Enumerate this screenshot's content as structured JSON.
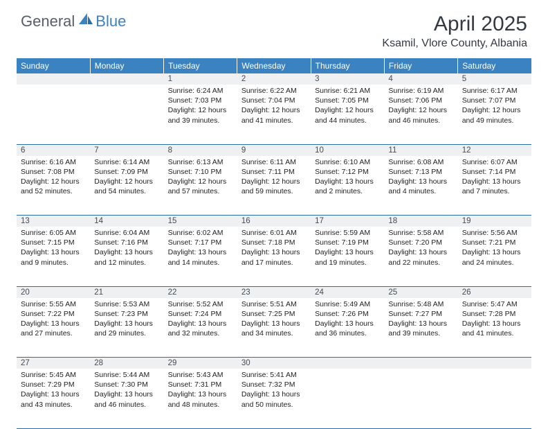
{
  "brand": {
    "general": "General",
    "blue": "Blue"
  },
  "title": "April 2025",
  "location": "Ksamil, Vlore County, Albania",
  "dayHeaders": [
    "Sunday",
    "Monday",
    "Tuesday",
    "Wednesday",
    "Thursday",
    "Friday",
    "Saturday"
  ],
  "colors": {
    "header_bg": "#3b83c0",
    "rule": "#2a6ea8",
    "daynum_bg": "#eef0f2",
    "text_dark": "#333a42"
  },
  "weeks": [
    [
      null,
      null,
      {
        "n": "1",
        "sr": "6:24 AM",
        "ss": "7:03 PM",
        "dl": "12 hours and 39 minutes."
      },
      {
        "n": "2",
        "sr": "6:22 AM",
        "ss": "7:04 PM",
        "dl": "12 hours and 41 minutes."
      },
      {
        "n": "3",
        "sr": "6:21 AM",
        "ss": "7:05 PM",
        "dl": "12 hours and 44 minutes."
      },
      {
        "n": "4",
        "sr": "6:19 AM",
        "ss": "7:06 PM",
        "dl": "12 hours and 46 minutes."
      },
      {
        "n": "5",
        "sr": "6:17 AM",
        "ss": "7:07 PM",
        "dl": "12 hours and 49 minutes."
      }
    ],
    [
      {
        "n": "6",
        "sr": "6:16 AM",
        "ss": "7:08 PM",
        "dl": "12 hours and 52 minutes."
      },
      {
        "n": "7",
        "sr": "6:14 AM",
        "ss": "7:09 PM",
        "dl": "12 hours and 54 minutes."
      },
      {
        "n": "8",
        "sr": "6:13 AM",
        "ss": "7:10 PM",
        "dl": "12 hours and 57 minutes."
      },
      {
        "n": "9",
        "sr": "6:11 AM",
        "ss": "7:11 PM",
        "dl": "12 hours and 59 minutes."
      },
      {
        "n": "10",
        "sr": "6:10 AM",
        "ss": "7:12 PM",
        "dl": "13 hours and 2 minutes."
      },
      {
        "n": "11",
        "sr": "6:08 AM",
        "ss": "7:13 PM",
        "dl": "13 hours and 4 minutes."
      },
      {
        "n": "12",
        "sr": "6:07 AM",
        "ss": "7:14 PM",
        "dl": "13 hours and 7 minutes."
      }
    ],
    [
      {
        "n": "13",
        "sr": "6:05 AM",
        "ss": "7:15 PM",
        "dl": "13 hours and 9 minutes."
      },
      {
        "n": "14",
        "sr": "6:04 AM",
        "ss": "7:16 PM",
        "dl": "13 hours and 12 minutes."
      },
      {
        "n": "15",
        "sr": "6:02 AM",
        "ss": "7:17 PM",
        "dl": "13 hours and 14 minutes."
      },
      {
        "n": "16",
        "sr": "6:01 AM",
        "ss": "7:18 PM",
        "dl": "13 hours and 17 minutes."
      },
      {
        "n": "17",
        "sr": "5:59 AM",
        "ss": "7:19 PM",
        "dl": "13 hours and 19 minutes."
      },
      {
        "n": "18",
        "sr": "5:58 AM",
        "ss": "7:20 PM",
        "dl": "13 hours and 22 minutes."
      },
      {
        "n": "19",
        "sr": "5:56 AM",
        "ss": "7:21 PM",
        "dl": "13 hours and 24 minutes."
      }
    ],
    [
      {
        "n": "20",
        "sr": "5:55 AM",
        "ss": "7:22 PM",
        "dl": "13 hours and 27 minutes."
      },
      {
        "n": "21",
        "sr": "5:53 AM",
        "ss": "7:23 PM",
        "dl": "13 hours and 29 minutes."
      },
      {
        "n": "22",
        "sr": "5:52 AM",
        "ss": "7:24 PM",
        "dl": "13 hours and 32 minutes."
      },
      {
        "n": "23",
        "sr": "5:51 AM",
        "ss": "7:25 PM",
        "dl": "13 hours and 34 minutes."
      },
      {
        "n": "24",
        "sr": "5:49 AM",
        "ss": "7:26 PM",
        "dl": "13 hours and 36 minutes."
      },
      {
        "n": "25",
        "sr": "5:48 AM",
        "ss": "7:27 PM",
        "dl": "13 hours and 39 minutes."
      },
      {
        "n": "26",
        "sr": "5:47 AM",
        "ss": "7:28 PM",
        "dl": "13 hours and 41 minutes."
      }
    ],
    [
      {
        "n": "27",
        "sr": "5:45 AM",
        "ss": "7:29 PM",
        "dl": "13 hours and 43 minutes."
      },
      {
        "n": "28",
        "sr": "5:44 AM",
        "ss": "7:30 PM",
        "dl": "13 hours and 46 minutes."
      },
      {
        "n": "29",
        "sr": "5:43 AM",
        "ss": "7:31 PM",
        "dl": "13 hours and 48 minutes."
      },
      {
        "n": "30",
        "sr": "5:41 AM",
        "ss": "7:32 PM",
        "dl": "13 hours and 50 minutes."
      },
      null,
      null,
      null
    ]
  ],
  "labels": {
    "sunrise": "Sunrise:",
    "sunset": "Sunset:",
    "daylight": "Daylight:"
  }
}
